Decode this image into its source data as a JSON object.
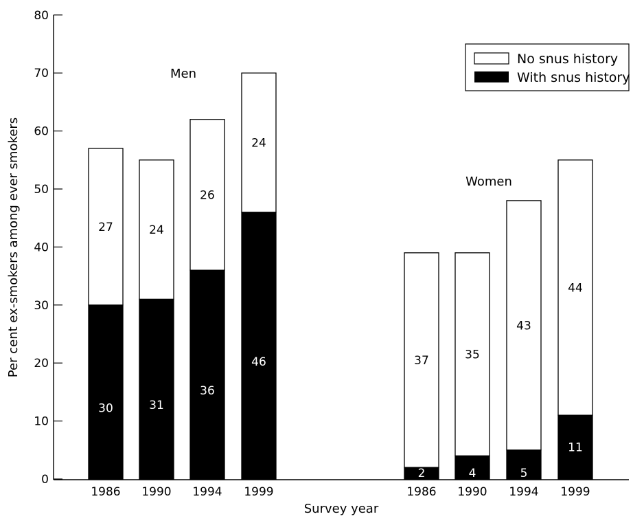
{
  "chart_data": {
    "type": "bar",
    "stacked": true,
    "title": "",
    "xlabel": "Survey year",
    "ylabel": "Per cent ex-smokers among ever smokers",
    "ylim": [
      0,
      80
    ],
    "yticks": [
      0,
      10,
      20,
      30,
      40,
      50,
      60,
      70,
      80
    ],
    "grid": false,
    "legend_position": "top-right",
    "legend": [
      {
        "label": "No snus history",
        "color": "#ffffff"
      },
      {
        "label": "With snus history",
        "color": "#000000"
      }
    ],
    "groups": [
      {
        "name": "Men",
        "categories": [
          "1986",
          "1990",
          "1994",
          "1999"
        ],
        "series": [
          {
            "name": "With snus history",
            "color": "#000000",
            "values": [
              30,
              31,
              36,
              46
            ]
          },
          {
            "name": "No snus history",
            "color": "#ffffff",
            "values": [
              27,
              24,
              26,
              24
            ]
          }
        ]
      },
      {
        "name": "Women",
        "categories": [
          "1986",
          "1990",
          "1994",
          "1999"
        ],
        "series": [
          {
            "name": "With snus history",
            "color": "#000000",
            "values": [
              2,
              4,
              5,
              11
            ]
          },
          {
            "name": "No snus history",
            "color": "#ffffff",
            "values": [
              37,
              35,
              43,
              44
            ]
          }
        ]
      }
    ]
  }
}
